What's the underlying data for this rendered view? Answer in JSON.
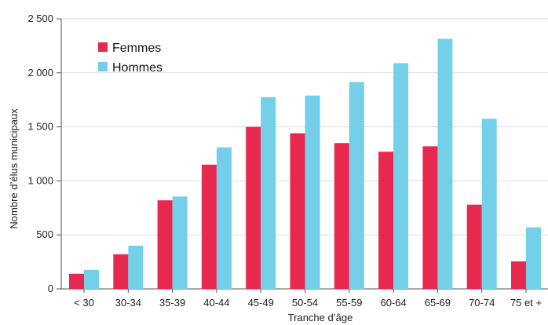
{
  "chart_data": {
    "type": "bar",
    "title": "",
    "xlabel": "Tranche d’âge",
    "ylabel": "Nombre d’élus municipaux",
    "categories": [
      "< 30",
      "30-34",
      "35-39",
      "40-44",
      "45-49",
      "50-54",
      "55-59",
      "60-64",
      "65-69",
      "70-74",
      "75 et +"
    ],
    "series": [
      {
        "name": "Femmes",
        "color": "#e8294f",
        "values": [
          140,
          320,
          820,
          1150,
          1500,
          1440,
          1350,
          1270,
          1320,
          780,
          255
        ]
      },
      {
        "name": "Hommes",
        "color": "#74cfe8",
        "values": [
          175,
          400,
          855,
          1310,
          1775,
          1790,
          1915,
          2090,
          2315,
          1575,
          570
        ]
      }
    ],
    "ylim": [
      0,
      2500
    ],
    "yticks": [
      0,
      500,
      1000,
      1500,
      2000,
      2500
    ],
    "ytick_labels": [
      "0",
      "500",
      "1 000",
      "1 500",
      "2 000",
      "2 500"
    ],
    "grid": true,
    "legend_position": "top-left"
  }
}
